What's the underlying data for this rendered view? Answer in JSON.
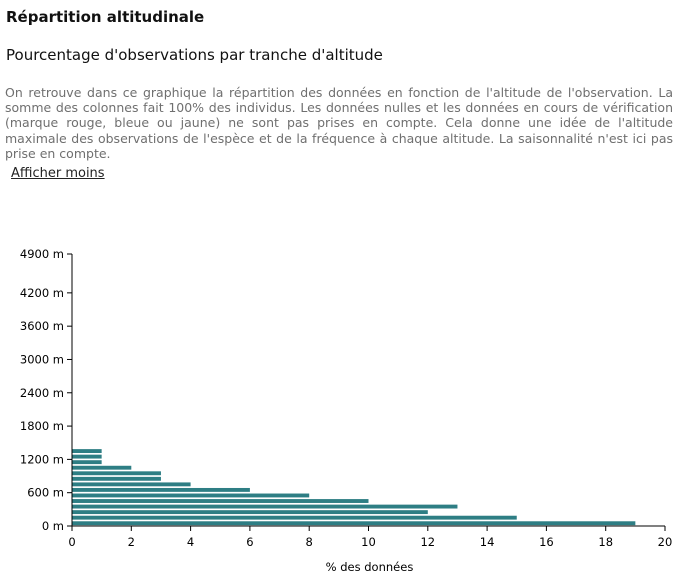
{
  "page": {
    "title": "Répartition altitudinale",
    "subtitle": "Pourcentage d'observations par tranche d'altitude",
    "description": "On retrouve dans ce graphique la répartition des données en fonction de l'altitude de l'observation. La somme des colonnes fait 100% des individus. Les données nulles et les données en cours de vérification (marque rouge, bleue ou jaune) ne sont pas prises en compte. Cela donne une idée de l'altitude maximale des observations de l'espèce et de la fréquence à chaque altitude. La saisonnalité n'est ici pas prise en compte.",
    "toggle_label": "Afficher moins"
  },
  "chart_data": {
    "type": "bar",
    "orientation": "horizontal",
    "bar_color": "#2e7e84",
    "xlabel": "% des données",
    "ylabel": "",
    "xlim": [
      0,
      20
    ],
    "x_ticks": [
      0,
      2,
      4,
      6,
      8,
      10,
      12,
      14,
      16,
      18,
      20
    ],
    "ylim": [
      0,
      4900
    ],
    "y_ticks": [
      0,
      600,
      1200,
      1800,
      2400,
      3000,
      3600,
      4200,
      4900
    ],
    "y_tick_labels": [
      "0 m",
      "600 m",
      "1200 m",
      "1800 m",
      "2400 m",
      "3000 m",
      "3600 m",
      "4200 m",
      "4900 m"
    ],
    "grid": false,
    "categories": [
      "0 m",
      "100 m",
      "200 m",
      "300 m",
      "400 m",
      "500 m",
      "600 m",
      "700 m",
      "800 m",
      "900 m",
      "1000 m",
      "1100 m",
      "1200 m",
      "1300 m"
    ],
    "values": [
      19,
      15,
      12,
      13,
      10,
      8,
      6,
      4,
      3,
      3,
      2,
      1,
      1,
      1
    ]
  }
}
